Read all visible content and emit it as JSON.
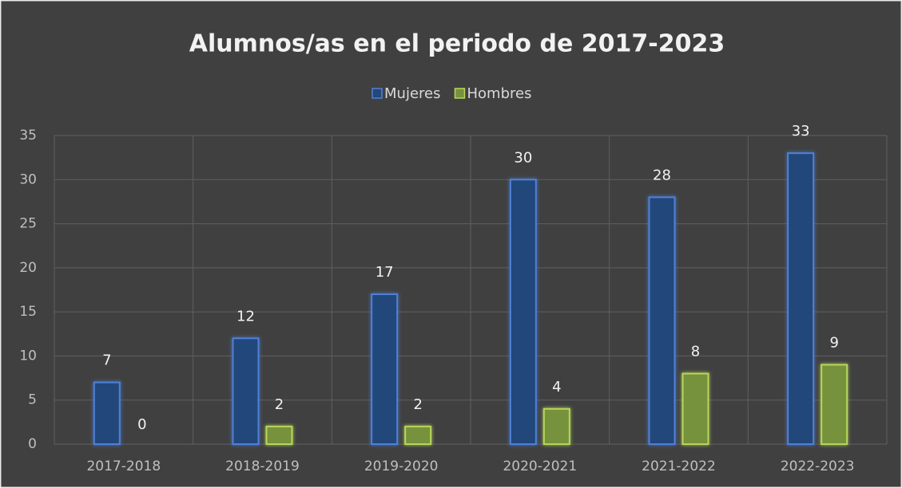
{
  "chart_data": {
    "type": "bar",
    "title": "Alumnos/as en el periodo de 2017-2023",
    "categories": [
      "2017-2018",
      "2018-2019",
      "2019-2020",
      "2020-2021",
      "2021-2022",
      "2022-2023"
    ],
    "series": [
      {
        "name": "Mujeres",
        "color": "#24477a",
        "values": [
          7,
          12,
          17,
          30,
          28,
          33
        ]
      },
      {
        "name": "Hombres",
        "color": "#76923c",
        "values": [
          0,
          2,
          2,
          4,
          8,
          9
        ]
      }
    ],
    "ylim": [
      0,
      35
    ],
    "yticks": [
      0,
      5,
      10,
      15,
      20,
      25,
      30,
      35
    ],
    "grid": true,
    "legend": "top"
  }
}
